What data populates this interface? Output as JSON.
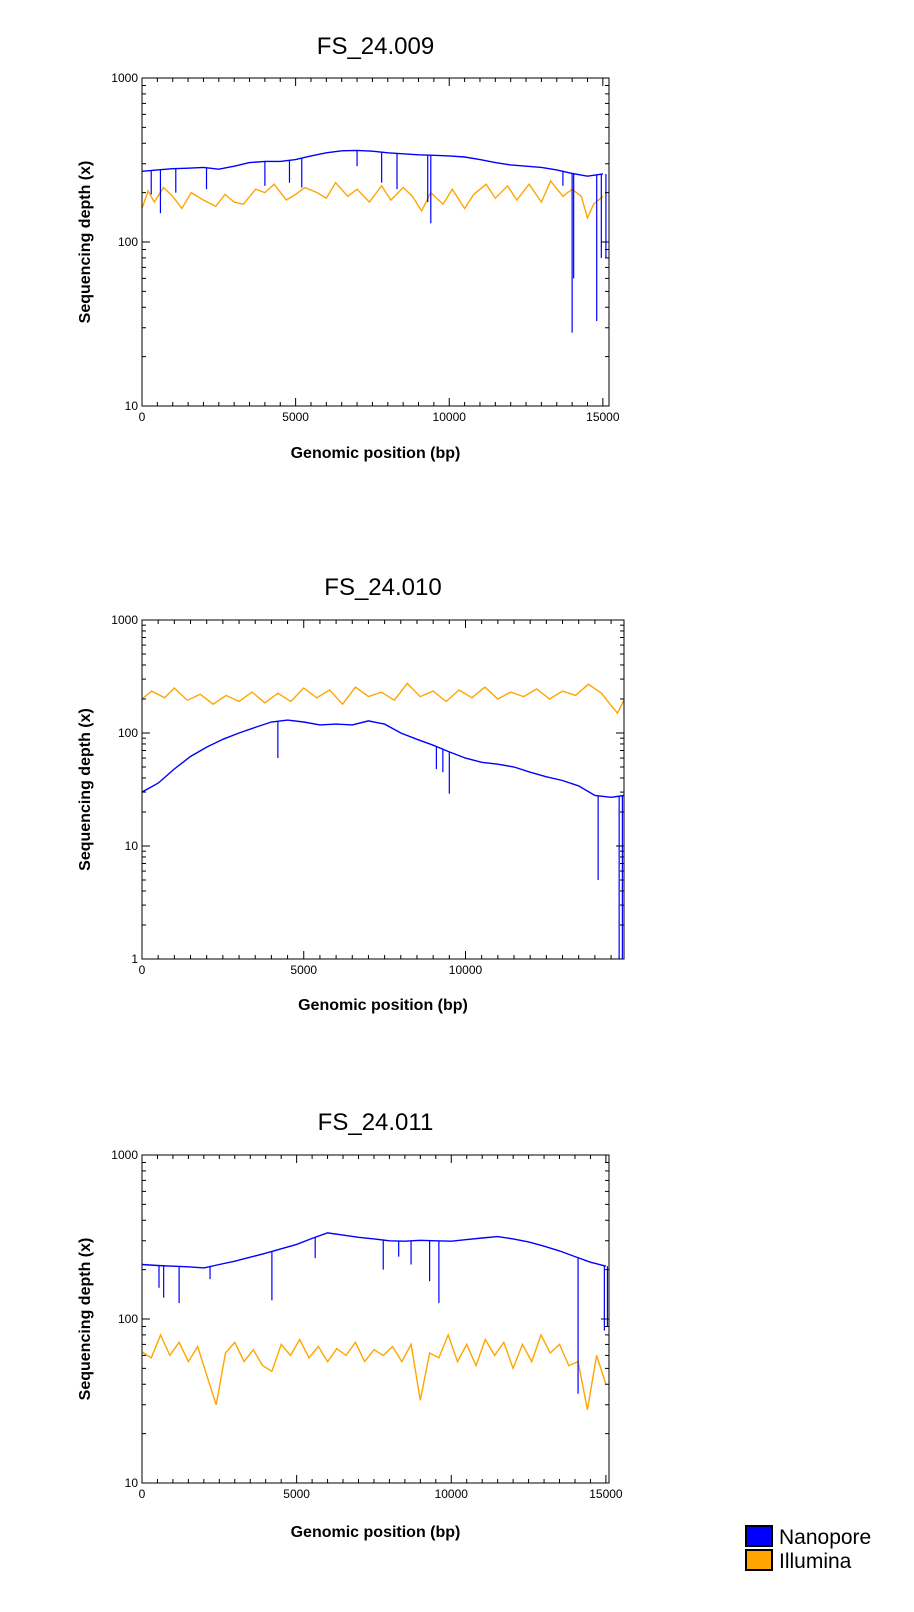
{
  "colors": {
    "nanopore": "#0000ff",
    "illumina": "#ffa500",
    "frame": "#000000",
    "background": "#ffffff"
  },
  "legend": {
    "placement": "bottom-right",
    "entries": [
      {
        "label": "Nanopore",
        "color": "#0000ff"
      },
      {
        "label": "Illumina",
        "color": "#ffa500"
      }
    ]
  },
  "chart_data": [
    {
      "type": "line",
      "title": "FS_24.009",
      "xlabel": "Genomic position (bp)",
      "ylabel": "Sequencing depth (x)",
      "yscale": "log",
      "xlim": [
        0,
        15200
      ],
      "ylim": [
        10,
        1000
      ],
      "xticks": [
        0,
        5000,
        10000,
        15000
      ],
      "xtick_labels": [
        "0",
        "5000",
        "10000",
        "15000"
      ],
      "yticks": [
        10,
        100,
        1000
      ],
      "ytick_labels": [
        "10",
        "100",
        "1000"
      ],
      "grid": false,
      "series": [
        {
          "name": "Nanopore",
          "color": "#0000ff",
          "x": [
            0,
            500,
            1000,
            1500,
            2000,
            2500,
            3000,
            3500,
            4000,
            4500,
            5000,
            5500,
            6000,
            6500,
            7000,
            7500,
            8000,
            8500,
            9000,
            9500,
            10000,
            10500,
            11000,
            11500,
            12000,
            12500,
            13000,
            13500,
            14000,
            14500,
            15000
          ],
          "y": [
            270,
            275,
            280,
            282,
            285,
            278,
            290,
            305,
            310,
            310,
            318,
            335,
            350,
            360,
            362,
            358,
            350,
            345,
            340,
            338,
            335,
            330,
            318,
            305,
            295,
            290,
            285,
            275,
            262,
            252,
            260
          ],
          "dips": [
            [
              300,
              195
            ],
            [
              600,
              150
            ],
            [
              1100,
              200
            ],
            [
              2100,
              210
            ],
            [
              4000,
              220
            ],
            [
              4800,
              230
            ],
            [
              5200,
              215
            ],
            [
              7000,
              290
            ],
            [
              7800,
              230
            ],
            [
              8300,
              210
            ],
            [
              9300,
              175
            ],
            [
              9400,
              130
            ],
            [
              13700,
              220
            ],
            [
              14000,
              28
            ],
            [
              14050,
              60
            ],
            [
              14800,
              33
            ],
            [
              14950,
              80
            ],
            [
              15100,
              80
            ]
          ]
        },
        {
          "name": "Illumina",
          "color": "#ffa500",
          "x": [
            0,
            200,
            400,
            700,
            1000,
            1300,
            1600,
            2000,
            2400,
            2700,
            3000,
            3300,
            3700,
            4000,
            4300,
            4700,
            5000,
            5300,
            5700,
            6000,
            6300,
            6700,
            7000,
            7400,
            7800,
            8100,
            8500,
            8800,
            9100,
            9400,
            9800,
            10100,
            10500,
            10800,
            11200,
            11500,
            11900,
            12200,
            12600,
            13000,
            13300,
            13700,
            14000,
            14300,
            14500,
            14700,
            15000
          ],
          "y": [
            160,
            205,
            175,
            215,
            190,
            160,
            200,
            180,
            165,
            195,
            175,
            170,
            210,
            200,
            225,
            180,
            195,
            215,
            200,
            185,
            230,
            190,
            210,
            175,
            220,
            180,
            215,
            190,
            155,
            200,
            170,
            210,
            160,
            195,
            225,
            185,
            220,
            180,
            225,
            175,
            235,
            190,
            210,
            190,
            140,
            170,
            190
          ]
        }
      ]
    },
    {
      "type": "line",
      "title": "FS_24.010",
      "xlabel": "Genomic position (bp)",
      "ylabel": "Sequencing depth (x)",
      "yscale": "log",
      "xlim": [
        0,
        14900
      ],
      "ylim": [
        1,
        1000
      ],
      "xticks": [
        0,
        5000,
        10000
      ],
      "xtick_labels": [
        "0",
        "5000",
        "10000"
      ],
      "yticks": [
        1,
        10,
        100,
        1000
      ],
      "ytick_labels": [
        "1",
        "10",
        "100",
        "1000"
      ],
      "grid": false,
      "series": [
        {
          "name": "Nanopore",
          "color": "#0000ff",
          "x": [
            0,
            500,
            1000,
            1500,
            2000,
            2500,
            3000,
            3500,
            4000,
            4500,
            5000,
            5500,
            6000,
            6500,
            7000,
            7500,
            8000,
            8500,
            9000,
            9500,
            10000,
            10500,
            11000,
            11500,
            12000,
            12500,
            13000,
            13500,
            14000,
            14500,
            14900
          ],
          "y": [
            30,
            36,
            48,
            62,
            75,
            88,
            100,
            112,
            125,
            130,
            125,
            118,
            120,
            118,
            128,
            120,
            100,
            88,
            78,
            68,
            60,
            55,
            53,
            50,
            45,
            41,
            38,
            34,
            28,
            27,
            28
          ],
          "dips": [
            [
              4200,
              60
            ],
            [
              9100,
              48
            ],
            [
              9300,
              45
            ],
            [
              9500,
              29
            ],
            [
              14100,
              5
            ],
            [
              14750,
              1
            ],
            [
              14850,
              1
            ]
          ]
        },
        {
          "name": "Illumina",
          "color": "#ffa500",
          "x": [
            0,
            300,
            700,
            1000,
            1400,
            1800,
            2200,
            2600,
            3000,
            3400,
            3800,
            4200,
            4600,
            5000,
            5400,
            5800,
            6200,
            6600,
            7000,
            7400,
            7800,
            8200,
            8600,
            9000,
            9400,
            9800,
            10200,
            10600,
            11000,
            11400,
            11800,
            12200,
            12600,
            13000,
            13400,
            13800,
            14200,
            14500,
            14700,
            14900
          ],
          "y": [
            200,
            235,
            205,
            250,
            195,
            220,
            180,
            215,
            190,
            230,
            185,
            225,
            190,
            250,
            205,
            240,
            180,
            255,
            210,
            230,
            195,
            275,
            210,
            235,
            190,
            240,
            205,
            255,
            200,
            230,
            210,
            245,
            200,
            235,
            215,
            270,
            225,
            175,
            150,
            195
          ]
        }
      ]
    },
    {
      "type": "line",
      "title": "FS_24.011",
      "xlabel": "Genomic position (bp)",
      "ylabel": "Sequencing depth (x)",
      "yscale": "log",
      "xlim": [
        0,
        15100
      ],
      "ylim": [
        10,
        1000
      ],
      "xticks": [
        0,
        5000,
        10000,
        15000
      ],
      "xtick_labels": [
        "0",
        "5000",
        "10000",
        "15000"
      ],
      "yticks": [
        10,
        100,
        1000
      ],
      "ytick_labels": [
        "10",
        "100",
        "1000"
      ],
      "grid": false,
      "series": [
        {
          "name": "Nanopore",
          "color": "#0000ff",
          "x": [
            0,
            500,
            1000,
            1500,
            2000,
            2500,
            3000,
            3500,
            4000,
            4500,
            5000,
            5500,
            6000,
            6500,
            7000,
            7500,
            8000,
            8500,
            9000,
            9500,
            10000,
            10500,
            11000,
            11500,
            12000,
            12500,
            13000,
            13500,
            14000,
            14500,
            15000
          ],
          "y": [
            215,
            212,
            210,
            208,
            205,
            215,
            225,
            238,
            252,
            268,
            285,
            310,
            335,
            325,
            315,
            308,
            300,
            298,
            302,
            300,
            298,
            305,
            312,
            318,
            308,
            295,
            278,
            260,
            240,
            222,
            210
          ],
          "dips": [
            [
              550,
              155
            ],
            [
              700,
              135
            ],
            [
              1200,
              125
            ],
            [
              2200,
              175
            ],
            [
              4200,
              130
            ],
            [
              5600,
              235
            ],
            [
              7800,
              200
            ],
            [
              8300,
              240
            ],
            [
              8700,
              215
            ],
            [
              9300,
              170
            ],
            [
              9600,
              125
            ],
            [
              14100,
              35
            ],
            [
              14950,
              85
            ],
            [
              15050,
              90
            ]
          ]
        },
        {
          "name": "Illumina",
          "color": "#ffa500",
          "x": [
            0,
            300,
            600,
            900,
            1200,
            1500,
            1800,
            2100,
            2400,
            2700,
            3000,
            3300,
            3600,
            3900,
            4200,
            4500,
            4800,
            5100,
            5400,
            5700,
            6000,
            6300,
            6600,
            6900,
            7200,
            7500,
            7800,
            8100,
            8400,
            8700,
            9000,
            9300,
            9600,
            9900,
            10200,
            10500,
            10800,
            11100,
            11400,
            11700,
            12000,
            12300,
            12600,
            12900,
            13200,
            13500,
            13800,
            14100,
            14400,
            14700,
            15000
          ],
          "y": [
            63,
            58,
            80,
            60,
            72,
            55,
            68,
            45,
            30,
            62,
            72,
            55,
            65,
            52,
            48,
            70,
            60,
            75,
            58,
            68,
            55,
            66,
            60,
            72,
            55,
            65,
            60,
            68,
            55,
            70,
            32,
            62,
            58,
            80,
            55,
            70,
            52,
            75,
            60,
            72,
            50,
            70,
            55,
            80,
            62,
            70,
            52,
            55,
            28,
            60,
            40
          ]
        }
      ]
    }
  ]
}
